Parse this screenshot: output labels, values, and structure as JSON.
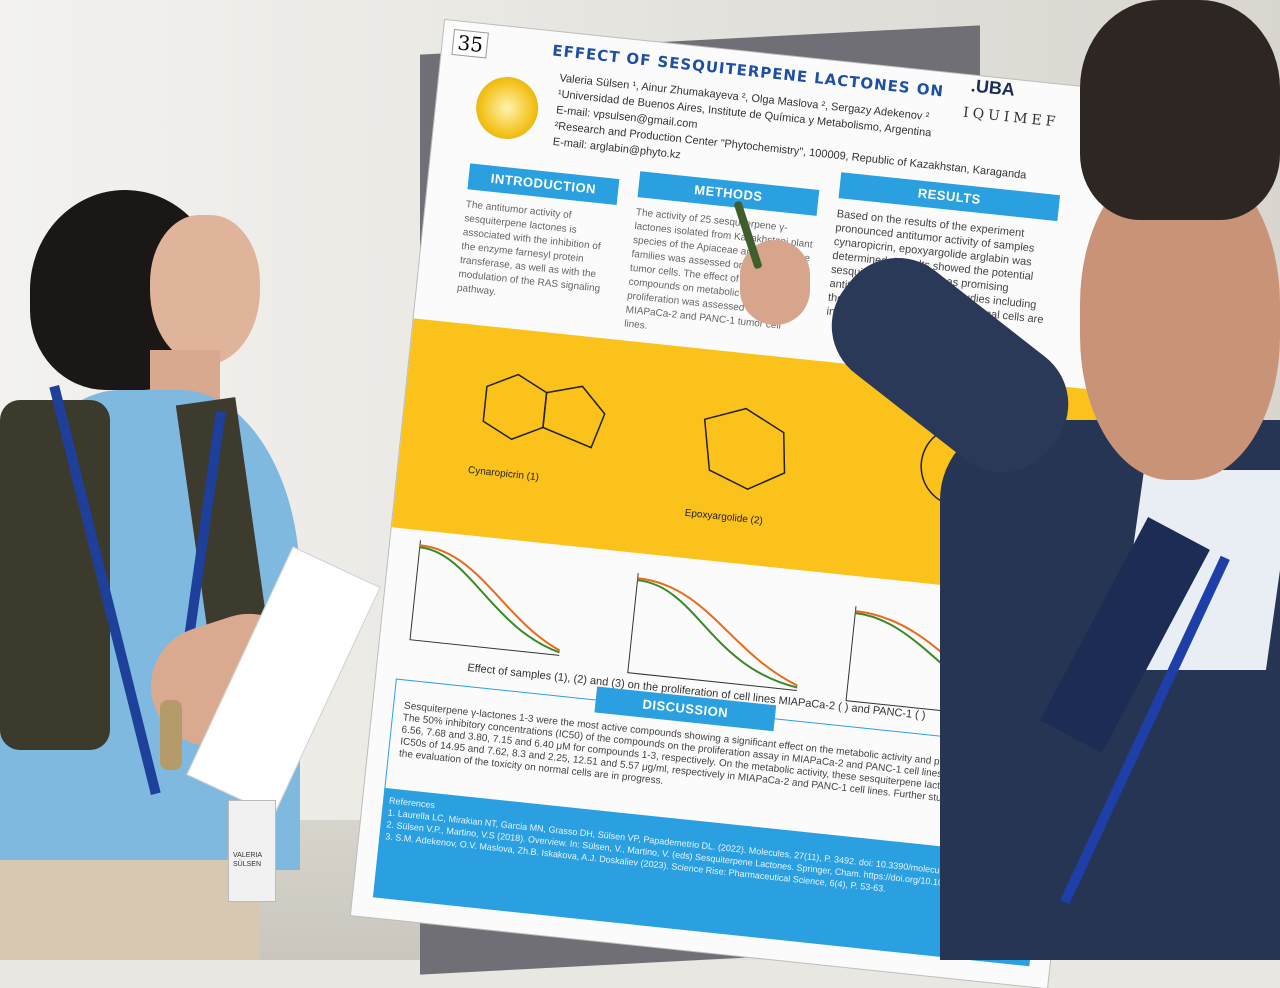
{
  "poster": {
    "number": "35",
    "title": "EFFECT OF SESQUITERPENE LACTONES ON",
    "authors_line": "Valeria Sülsen ¹, Ainur Zhumakayeva ², Olga Maslova ², Sergazy Adekenov ²",
    "affil1": "¹Universidad de Buenos Aires, Institute de Química y Metabolismo, Argentina",
    "email1": "E-mail: vpsulsen@gmail.com",
    "affil2": "²Research and Production Center \"Phytochemistry\", 100009, Republic of Kazakhstan, Karaganda",
    "email2": "E-mail: arglabin@phyto.kz",
    "logo_right_1": ".UBA",
    "logo_right_2": "IQUIMEF",
    "sections": {
      "introduction": {
        "header": "INTRODUCTION",
        "text": "The antitumor activity of sesquiterpene lactones is associated with the inhibition of the enzyme farnesyl protein transferase, as well as with the modulation of the RAS signaling pathway."
      },
      "methods": {
        "header": "METHODS",
        "text": "The activity of 25 sesquiterpene γ-lactones isolated from Kazakhstani plant species of the Apiaceae and Asteraceae families was assessed on pancreatic tumor cells. The effect of the compounds on metabolic and proliferation was assessed in vitro MIAPaCa-2 and PANC-1 tumor cell lines."
      },
      "results": {
        "header": "RESULTS",
        "text": "Based on the results of the experiment pronounced antitumor activity of samples cynaropicrin, epoxyargolide arglabin was determined. Results showed the potential sesquiterpene lactones as promising antitumor agents. Further studies including the evaluation of the toxicity normal cells are in progress."
      },
      "discussion": {
        "header": "DISCUSSION",
        "text": "Sesquiterpene γ-lactones 1-3 were the most active compounds showing a significant effect on the metabolic activity and proliferation assay. The 50% inhibitory concentrations (IC50) of the compounds on the proliferation assay in MIAPaCa-2 and PANC-1 cell lines were 12.46 and 6.56, 7.68 and 3.80, 7.15 and 6.40 μM for compounds 1-3, respectively. On the metabolic activity, these sesquiterpene lactones showed IC50s of 14.95 and 7.62, 8.3 and 2.25, 12.51 and 5.57 μg/ml, respectively in MIAPaCa-2 and PANC-1 cell lines. Further studies including the evaluation of the toxicity on normal cells are in progress."
      }
    },
    "molecules": [
      "Cynaropicrin (1)",
      "Epoxyargolide (2)"
    ],
    "caption": "Effect of samples (1), (2) and (3) on the proliferation of cell lines MIAPaCa-2 ( ) and PANC-1 ( )",
    "references": [
      "References",
      "1. Laurella LC, Mirakian NT, Garcia MN, Grasso DH, Sülsen VP, Papademetrio DL. (2022). Molecules, 27(11), P. 3492. doi: 10.3390/molecules27113492",
      "2. Sülsen V.P., Martino, V.S (2018). Overview. In: Sülsen, V., Martino, V. (eds) Sesquiterpene Lactones. Springer, Cham. https://doi.org/10.1007/978",
      "3. S.M. Adekenov, O.V. Maslova, Zh.B. Iskakova, A.J. Doskaliev (2023). Science Rise: Pharmaceutical Science, 6(4), P. 53-63."
    ]
  },
  "badge": {
    "name_line1": "VALERIA",
    "name_line2": "SÜLSEN"
  },
  "colors": {
    "poster_blue": "#2aa0e0",
    "poster_yellow": "#fbc21c",
    "orange_series": "#e86a1a",
    "green_series": "#3a8a2a"
  }
}
